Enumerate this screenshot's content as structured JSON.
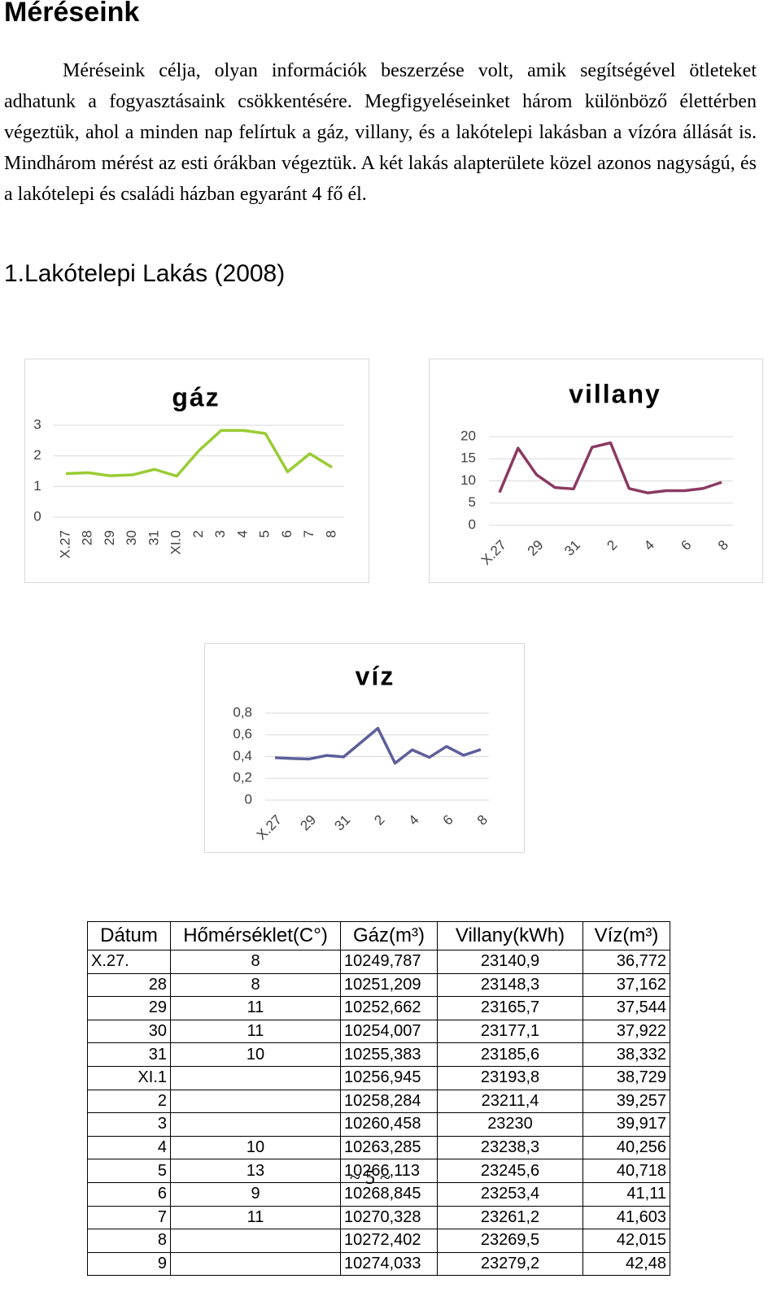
{
  "document": {
    "heading": "Méréseink",
    "paragraph": "Méréseink célja, olyan információk beszerzése volt, amik segítségével ötleteket adhatunk a fogyasztásaink csökkentésére. Megfigyeléseinket három különböző élettérben végeztük, ahol a minden nap felírtuk a gáz, villany, és a lakótelepi lakásban a vízóra állását is. Mindhárom mérést az esti órákban végeztük. A két lakás alapterülete közel azonos nagyságú, és a lakótelepi és családi házban egyaránt 4 fő él.",
    "subheading": "1.Lakótelepi Lakás (2008)",
    "table": {
      "header": [
        "Dátum",
        "Hőmérséklet(C°)",
        "Gáz(m³)",
        "Villany(kWh)",
        "Víz(m³)"
      ],
      "rows": [
        [
          "X.27.",
          "8",
          "10249,787",
          "23140,9",
          "36,772"
        ],
        [
          "28",
          "8",
          "10251,209",
          "23148,3",
          "37,162"
        ],
        [
          "29",
          "11",
          "10252,662",
          "23165,7",
          "37,544"
        ],
        [
          "30",
          "11",
          "10254,007",
          "23177,1",
          "37,922"
        ],
        [
          "31",
          "10",
          "10255,383",
          "23185,6",
          "38,332"
        ],
        [
          "XI.1",
          null,
          "10256,945",
          "23193,8",
          "38,729"
        ],
        [
          "2",
          null,
          "10258,284",
          "23211,4",
          "39,257"
        ],
        [
          "3",
          null,
          "10260,458",
          "23230",
          "39,917"
        ],
        [
          "4",
          "10",
          "10263,285",
          "23238,3",
          "40,256"
        ],
        [
          "5",
          "13",
          "10266,113",
          "23245,6",
          "40,718"
        ],
        [
          "6",
          "9",
          "10268,845",
          "23253,4",
          "41,11"
        ],
        [
          "7",
          "11",
          "10270,328",
          "23261,2",
          "41,603"
        ],
        [
          "8",
          null,
          "10272,402",
          "23269,5",
          "42,015"
        ],
        [
          "9",
          null,
          "10274,033",
          "23279,2",
          "42,48"
        ]
      ]
    },
    "footer": "~ 5 ~"
  },
  "chart_data": [
    {
      "type": "line",
      "title": "gáz",
      "color": "#99cc33",
      "grid": true,
      "categories": [
        "X.27",
        "28",
        "29",
        "30",
        "31",
        "XI.0",
        "2",
        "3",
        "4",
        "5",
        "6",
        "7",
        "8"
      ],
      "values": [
        1.42,
        1.45,
        1.35,
        1.38,
        1.56,
        1.34,
        2.17,
        2.83,
        2.83,
        2.73,
        1.48,
        2.07,
        1.63
      ],
      "ylim": [
        0,
        3
      ],
      "yticks": [
        0,
        1,
        2,
        3
      ]
    },
    {
      "type": "line",
      "title": "villany",
      "color": "#8b3a62",
      "grid": true,
      "categories": [
        "X.27",
        null,
        "29",
        null,
        "31",
        null,
        "2",
        null,
        "4",
        null,
        "6",
        null,
        "8"
      ],
      "values": [
        7.4,
        17.4,
        11.4,
        8.5,
        8.2,
        17.6,
        18.6,
        8.3,
        7.3,
        7.8,
        7.8,
        8.3,
        9.7
      ],
      "ylim": [
        0,
        20
      ],
      "yticks": [
        0,
        5,
        10,
        15,
        20
      ]
    },
    {
      "type": "line",
      "title": "víz",
      "color": "#5c5f9a",
      "grid": true,
      "categories": [
        "X.27",
        null,
        "29",
        null,
        "31",
        null,
        "2",
        null,
        "4",
        null,
        "6",
        null,
        "8"
      ],
      "values": [
        0.39,
        0.382,
        0.378,
        0.41,
        0.397,
        0.528,
        0.66,
        0.339,
        0.462,
        0.393,
        0.493,
        0.412,
        0.465
      ],
      "ylim": [
        0,
        0.8
      ],
      "yticks": [
        0,
        {
          "value": 0.2,
          "label": "0,2"
        },
        {
          "value": 0.4,
          "label": "0,4"
        },
        {
          "value": 0.6,
          "label": "0,6"
        },
        {
          "value": 0.8,
          "label": "0,8"
        }
      ]
    }
  ]
}
